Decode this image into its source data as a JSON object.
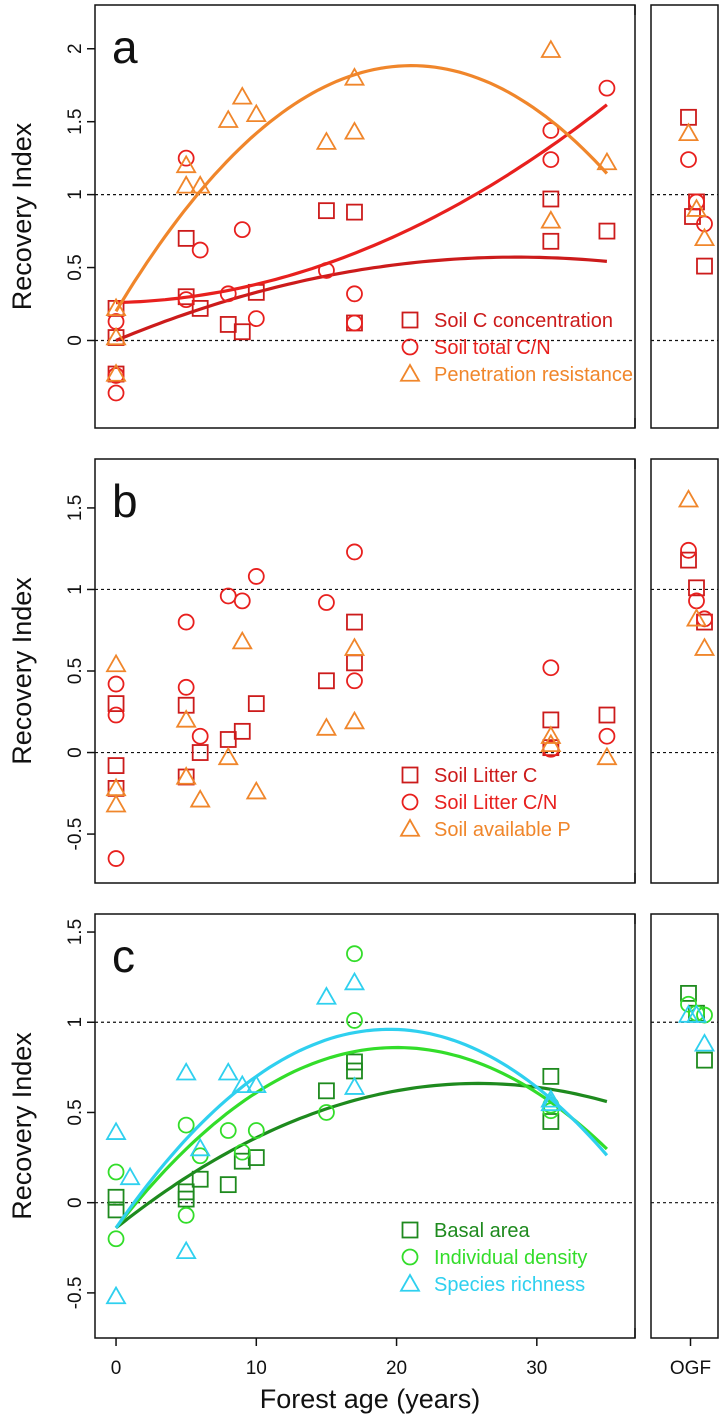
{
  "figure": {
    "xlabel": "Forest age (years)",
    "ylabel": "Recovery Index",
    "xticks": [
      "0",
      "10",
      "20",
      "30"
    ],
    "ogf_label": "OGF"
  },
  "chart_data": [
    {
      "type": "scatter",
      "panel": "a",
      "ylim": [
        -0.6,
        2.3
      ],
      "xlim": [
        -1.5,
        37
      ],
      "yticks": [
        0,
        0.5,
        1,
        1.5,
        2
      ],
      "ytick_labels": [
        "0",
        "0.5",
        "1",
        "1.5",
        "2"
      ],
      "reference_lines": [
        0,
        1
      ],
      "legend_position": "bottom-right",
      "series": [
        {
          "name": "Soil C concentration",
          "marker": "square",
          "color": "#cc1b1b",
          "points": [
            [
              0,
              0.22
            ],
            [
              0,
              0.02
            ],
            [
              0,
              -0.23
            ],
            [
              5,
              0.7
            ],
            [
              5,
              0.3
            ],
            [
              6,
              0.22
            ],
            [
              8,
              0.11
            ],
            [
              9,
              0.06
            ],
            [
              10,
              0.33
            ],
            [
              15,
              0.89
            ],
            [
              17,
              0.88
            ],
            [
              17,
              0.12
            ],
            [
              31,
              0.97
            ],
            [
              31,
              0.68
            ],
            [
              35,
              0.75
            ]
          ],
          "ogf_points": [
            1.53,
            0.95,
            0.51,
            0.85
          ],
          "fit": [
            0.0,
            0.04,
            -0.0007,
            0,
            35
          ]
        },
        {
          "name": "Soil total C/N",
          "marker": "circle",
          "color": "#e8201e",
          "points": [
            [
              0,
              0.13
            ],
            [
              0,
              -0.36
            ],
            [
              0,
              -0.24
            ],
            [
              5,
              1.25
            ],
            [
              5,
              0.28
            ],
            [
              6,
              0.62
            ],
            [
              8,
              0.32
            ],
            [
              9,
              0.76
            ],
            [
              10,
              0.15
            ],
            [
              15,
              0.48
            ],
            [
              17,
              0.32
            ],
            [
              17,
              0.12
            ],
            [
              31,
              1.44
            ],
            [
              31,
              1.24
            ],
            [
              35,
              1.73
            ]
          ],
          "ogf_points": [
            1.24,
            0.95,
            0.8
          ],
          "fit": [
            0.26,
            0.002,
            0.00105,
            0,
            35
          ]
        },
        {
          "name": "Penetration resistance",
          "marker": "triangle",
          "color": "#f0862b",
          "points": [
            [
              0,
              0.22
            ],
            [
              0,
              0.02
            ],
            [
              0,
              -0.23
            ],
            [
              5,
              1.2
            ],
            [
              5,
              1.06
            ],
            [
              6,
              1.06
            ],
            [
              8,
              1.51
            ],
            [
              9,
              1.67
            ],
            [
              10,
              1.55
            ],
            [
              15,
              1.36
            ],
            [
              17,
              1.8
            ],
            [
              17,
              1.43
            ],
            [
              31,
              1.99
            ],
            [
              31,
              0.82
            ],
            [
              35,
              1.22
            ]
          ],
          "ogf_points": [
            1.42,
            0.9,
            0.7
          ],
          "fit": [
            0.2,
            0.16,
            -0.0038,
            0,
            35
          ]
        }
      ]
    },
    {
      "type": "scatter",
      "panel": "b",
      "ylim": [
        -0.8,
        1.8
      ],
      "xlim": [
        -1.5,
        37
      ],
      "yticks": [
        -0.5,
        0,
        0.5,
        1,
        1.5
      ],
      "ytick_labels": [
        "-0.5",
        "0",
        "0.5",
        "1",
        "1.5"
      ],
      "reference_lines": [
        0,
        1
      ],
      "legend_position": "bottom-right",
      "series": [
        {
          "name": "Soil Litter C",
          "marker": "square",
          "color": "#cc1b1b",
          "points": [
            [
              0,
              0.3
            ],
            [
              0,
              -0.08
            ],
            [
              0,
              -0.22
            ],
            [
              5,
              0.29
            ],
            [
              5,
              -0.15
            ],
            [
              6,
              0.0
            ],
            [
              8,
              0.08
            ],
            [
              9,
              0.13
            ],
            [
              10,
              0.3
            ],
            [
              15,
              0.44
            ],
            [
              17,
              0.8
            ],
            [
              17,
              0.55
            ],
            [
              31,
              0.2
            ],
            [
              31,
              0.03
            ],
            [
              35,
              0.23
            ]
          ],
          "ogf_points": [
            1.18,
            1.01,
            0.8
          ]
        },
        {
          "name": "Soil Litter C/N",
          "marker": "circle",
          "color": "#e8201e",
          "points": [
            [
              0,
              0.42
            ],
            [
              0,
              0.23
            ],
            [
              0,
              -0.65
            ],
            [
              5,
              0.8
            ],
            [
              5,
              0.4
            ],
            [
              6,
              0.1
            ],
            [
              8,
              0.96
            ],
            [
              9,
              0.93
            ],
            [
              10,
              1.08
            ],
            [
              15,
              0.92
            ],
            [
              17,
              1.23
            ],
            [
              17,
              0.44
            ],
            [
              31,
              0.52
            ],
            [
              31,
              0.02
            ],
            [
              35,
              0.1
            ]
          ],
          "ogf_points": [
            1.24,
            0.93,
            0.82
          ]
        },
        {
          "name": "Soil available P",
          "marker": "triangle",
          "color": "#f0862b",
          "points": [
            [
              0,
              0.54
            ],
            [
              0,
              -0.22
            ],
            [
              0,
              -0.32
            ],
            [
              5,
              0.2
            ],
            [
              5,
              -0.15
            ],
            [
              6,
              -0.29
            ],
            [
              8,
              -0.03
            ],
            [
              9,
              0.68
            ],
            [
              10,
              -0.24
            ],
            [
              15,
              0.15
            ],
            [
              17,
              0.64
            ],
            [
              17,
              0.19
            ],
            [
              31,
              0.1
            ],
            [
              31,
              0.05
            ],
            [
              35,
              -0.03
            ]
          ],
          "ogf_points": [
            1.55,
            0.82,
            0.64
          ]
        }
      ]
    },
    {
      "type": "scatter",
      "panel": "c",
      "ylim": [
        -0.75,
        1.6
      ],
      "xlim": [
        -1.5,
        37
      ],
      "yticks": [
        -0.5,
        0,
        0.5,
        1,
        1.5
      ],
      "ytick_labels": [
        "-0.5",
        "0",
        "0.5",
        "1",
        "1.5"
      ],
      "reference_lines": [
        0,
        1
      ],
      "legend_position": "bottom-right",
      "series": [
        {
          "name": "Basal area",
          "marker": "square",
          "color": "#1e8a1e",
          "points": [
            [
              0,
              0.03
            ],
            [
              0,
              -0.04
            ],
            [
              5,
              0.06
            ],
            [
              5,
              0.02
            ],
            [
              6,
              0.13
            ],
            [
              8,
              0.1
            ],
            [
              9,
              0.23
            ],
            [
              10,
              0.25
            ],
            [
              15,
              0.62
            ],
            [
              17,
              0.78
            ],
            [
              17,
              0.73
            ],
            [
              31,
              0.7
            ],
            [
              31,
              0.45
            ]
          ],
          "ogf_points": [
            1.16,
            1.05,
            0.79
          ],
          "fit": [
            -0.14,
            0.062,
            -0.0012,
            0,
            35
          ]
        },
        {
          "name": "Individual density",
          "marker": "circle",
          "color": "#33dd2a",
          "points": [
            [
              0,
              0.17
            ],
            [
              0,
              -0.2
            ],
            [
              5,
              0.43
            ],
            [
              5,
              -0.07
            ],
            [
              6,
              0.26
            ],
            [
              8,
              0.4
            ],
            [
              9,
              0.28
            ],
            [
              10,
              0.4
            ],
            [
              15,
              0.5
            ],
            [
              17,
              1.38
            ],
            [
              17,
              1.01
            ],
            [
              31,
              0.54
            ],
            [
              31,
              0.51
            ]
          ],
          "ogf_points": [
            1.1,
            1.05,
            1.04
          ],
          "fit": [
            -0.14,
            0.1,
            -0.0025,
            0,
            35
          ]
        },
        {
          "name": "Species richness",
          "marker": "triangle",
          "color": "#2fd0ef",
          "points": [
            [
              0,
              0.39
            ],
            [
              0,
              -0.52
            ],
            [
              1,
              0.14
            ],
            [
              5,
              0.72
            ],
            [
              5,
              -0.27
            ],
            [
              6,
              0.3
            ],
            [
              8,
              0.72
            ],
            [
              9,
              0.65
            ],
            [
              10,
              0.65
            ],
            [
              15,
              1.14
            ],
            [
              17,
              1.22
            ],
            [
              17,
              0.64
            ],
            [
              31,
              0.57
            ],
            [
              31,
              0.55
            ]
          ],
          "ogf_points": [
            1.04,
            1.04,
            0.88
          ],
          "fit": [
            -0.14,
            0.113,
            -0.0029,
            0,
            35
          ]
        }
      ]
    }
  ]
}
